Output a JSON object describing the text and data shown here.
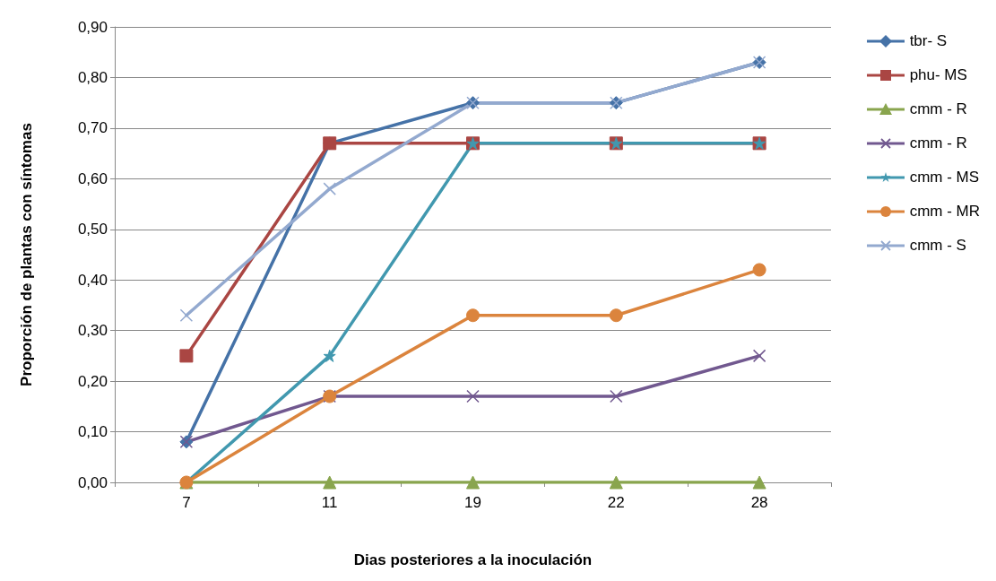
{
  "chart_data": {
    "type": "line",
    "xlabel": "Dias posteriores a la inoculación",
    "ylabel": "Proporción de plantas con síntomas",
    "categories": [
      "7",
      "11",
      "19",
      "22",
      "28"
    ],
    "series": [
      {
        "name": "tbr- S",
        "color": "#4572a7",
        "marker": "diamond",
        "values": [
          0.08,
          0.67,
          0.75,
          0.75,
          0.83
        ]
      },
      {
        "name": "phu- MS",
        "color": "#aa4643",
        "marker": "square",
        "values": [
          0.25,
          0.67,
          0.67,
          0.67,
          0.67
        ]
      },
      {
        "name": "cmm - R",
        "color": "#89a54e",
        "marker": "triangle",
        "values": [
          0,
          0,
          0,
          0,
          0
        ]
      },
      {
        "name": "cmm - R",
        "color": "#71588f",
        "marker": "cross",
        "values": [
          0.08,
          0.17,
          0.17,
          0.17,
          0.25
        ]
      },
      {
        "name": "cmm - MS",
        "color": "#4198af",
        "marker": "star",
        "values": [
          0,
          0.25,
          0.67,
          0.67,
          0.67
        ]
      },
      {
        "name": "cmm - MR",
        "color": "#db843d",
        "marker": "circle",
        "values": [
          0,
          0.17,
          0.33,
          0.33,
          0.42
        ]
      },
      {
        "name": "cmm - S",
        "color": "#93a9cf",
        "marker": "cross",
        "values": [
          0.33,
          0.58,
          0.75,
          0.75,
          0.83
        ]
      }
    ],
    "ylim": [
      0,
      0.9
    ],
    "yticks": [
      {
        "value": 0,
        "label": "0,00"
      },
      {
        "value": 0.1,
        "label": "0,10"
      },
      {
        "value": 0.2,
        "label": "0,20"
      },
      {
        "value": 0.3,
        "label": "0,30"
      },
      {
        "value": 0.4,
        "label": "0,40"
      },
      {
        "value": 0.5,
        "label": "0,50"
      },
      {
        "value": 0.6,
        "label": "0,60"
      },
      {
        "value": 0.7,
        "label": "0,70"
      },
      {
        "value": 0.8,
        "label": "0,80"
      },
      {
        "value": 0.9,
        "label": "0,90"
      }
    ],
    "grid": "y",
    "legend": "right",
    "line_style": "solid"
  }
}
